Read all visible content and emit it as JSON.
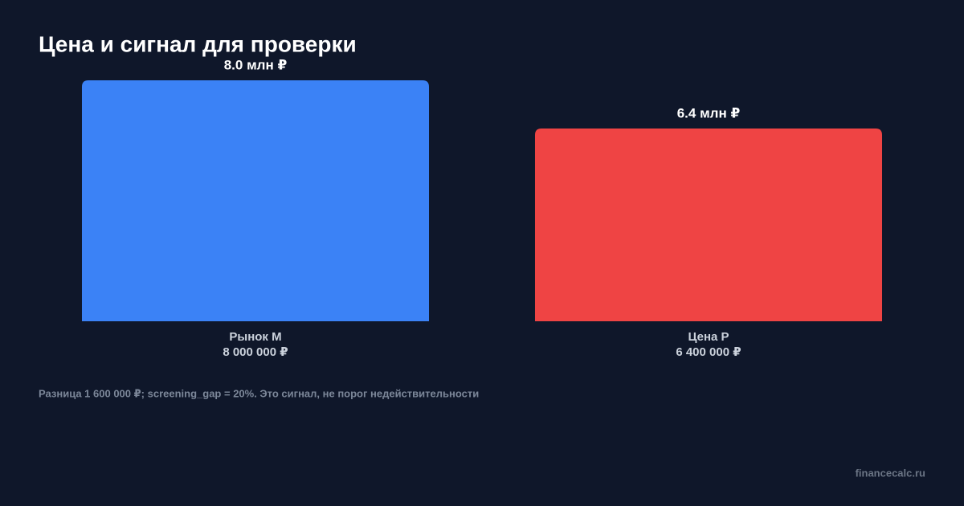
{
  "chart_data": {
    "type": "bar",
    "title": "Цена и сигнал для проверки",
    "categories": [
      "Рынок M",
      "Цена P"
    ],
    "category_sublabels": [
      "8 000 000 ₽",
      "6 400 000 ₽"
    ],
    "values": [
      8000000,
      6400000
    ],
    "value_labels": [
      "8.0 млн ₽",
      "6.4 млн ₽"
    ],
    "colors": [
      "#3b82f6",
      "#ef4444"
    ],
    "ylim": [
      0,
      8000000
    ],
    "grid": false,
    "note": "Разница 1 600 000 ₽; screening_gap = 20%. Это сигнал, не порог недействительности",
    "watermark": "financecalc.ru"
  }
}
